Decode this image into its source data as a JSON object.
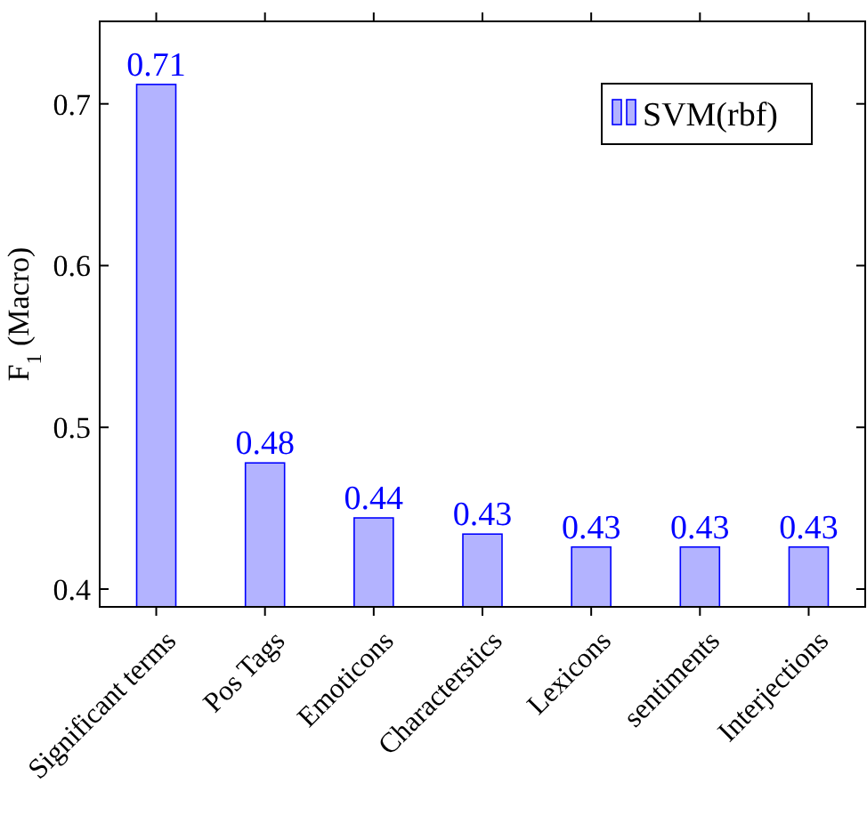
{
  "chart_data": {
    "type": "bar",
    "ylabel": "F$_{1}$ (Macro)",
    "categories": [
      "Significant terms",
      "Pos Tags",
      "Emoticons",
      "Characterstics",
      "Lexicons",
      "sentiments",
      "Interjections"
    ],
    "series": [
      {
        "name": "SVM(rbf)",
        "color": "#b3b3ff",
        "values": [
          0.712,
          0.478,
          0.444,
          0.434,
          0.426,
          0.426,
          0.426
        ],
        "value_labels": [
          "0.71",
          "0.48",
          "0.44",
          "0.43",
          "0.43",
          "0.43",
          "0.43"
        ]
      }
    ],
    "ylim": [
      0.389,
      0.751
    ],
    "yticks": [
      0.4,
      0.5,
      0.6,
      0.7
    ],
    "grid": false,
    "legend": "top right"
  }
}
